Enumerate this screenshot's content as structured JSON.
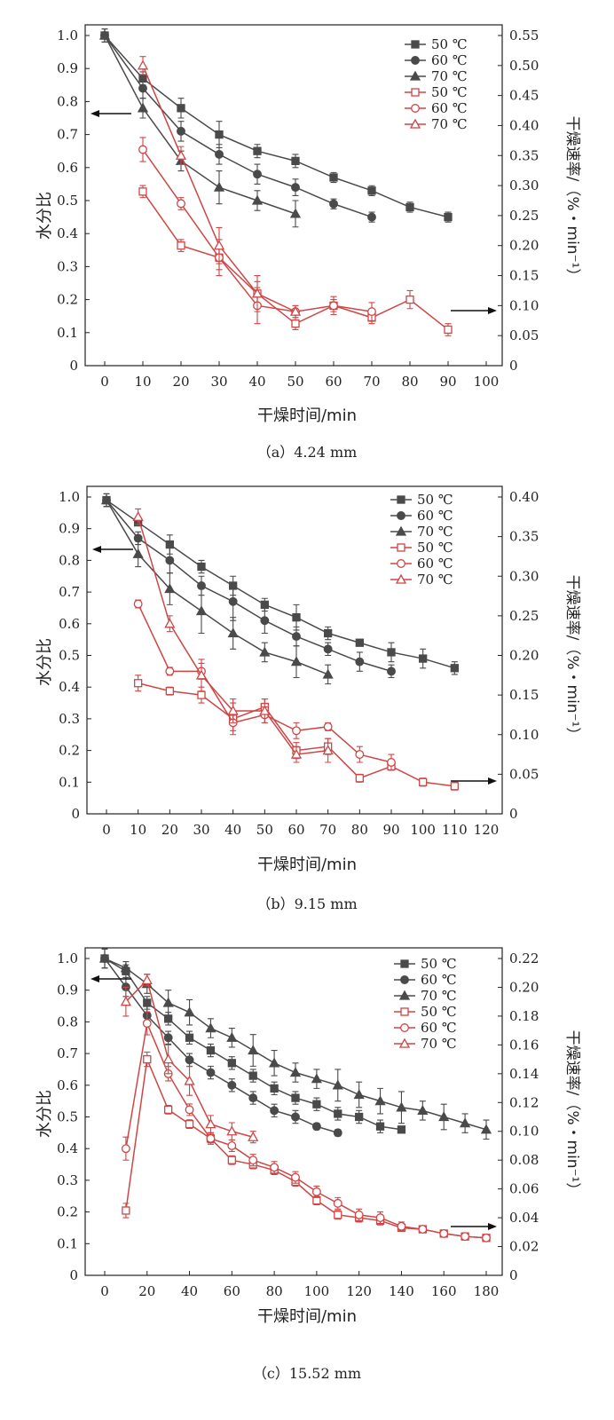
{
  "chart_data": [
    {
      "type": "line",
      "caption": "（a）4.24 mm",
      "xlabel": "干燥时间/min",
      "ylabel": "水分比",
      "y2label": "干燥速率/（%・min⁻¹）",
      "xlim": [
        0,
        100
      ],
      "ylim": [
        0,
        1.0
      ],
      "y2lim": [
        0,
        0.55
      ],
      "xticks": [
        "0",
        "10",
        "20",
        "30",
        "40",
        "50",
        "60",
        "70",
        "80",
        "90",
        "100"
      ],
      "yticks": [
        "0",
        "0.1",
        "0.2",
        "0.3",
        "0.4",
        "0.5",
        "0.6",
        "0.7",
        "0.8",
        "0.9",
        "1.0"
      ],
      "y2ticks": [
        "0",
        "0.05",
        "0.10",
        "0.15",
        "0.20",
        "0.25",
        "0.30",
        "0.35",
        "0.40",
        "0.45",
        "0.50",
        "0.55"
      ],
      "legend": [
        "50 ℃",
        "60 ℃",
        "70 ℃",
        "50 ℃",
        "60 ℃",
        "70 ℃"
      ],
      "legend_position": "top-right",
      "arrows": [
        "left",
        "right"
      ],
      "series": [
        {
          "name": "50 ℃",
          "axis": "left",
          "color": "#4a4a4a",
          "marker": "square-filled",
          "x": [
            0,
            10,
            20,
            30,
            40,
            50,
            60,
            70,
            80,
            90
          ],
          "y": [
            1.0,
            0.87,
            0.78,
            0.7,
            0.65,
            0.62,
            0.57,
            0.53,
            0.48,
            0.45
          ],
          "err": [
            0.02,
            0.02,
            0.03,
            0.04,
            0.02,
            0.02,
            0.015,
            0.015,
            0.015,
            0.015
          ]
        },
        {
          "name": "60 ℃",
          "axis": "left",
          "color": "#4a4a4a",
          "marker": "circle-filled",
          "x": [
            0,
            10,
            20,
            30,
            40,
            50,
            60,
            70
          ],
          "y": [
            1.0,
            0.84,
            0.71,
            0.64,
            0.58,
            0.54,
            0.49,
            0.45
          ],
          "err": [
            0.02,
            0.03,
            0.03,
            0.03,
            0.03,
            0.025,
            0.015,
            0.015
          ]
        },
        {
          "name": "70 ℃",
          "axis": "left",
          "color": "#4a4a4a",
          "marker": "triangle-filled",
          "x": [
            0,
            10,
            20,
            30,
            40,
            50
          ],
          "y": [
            1.0,
            0.78,
            0.62,
            0.54,
            0.5,
            0.46
          ],
          "err": [
            0.02,
            0.03,
            0.03,
            0.05,
            0.03,
            0.04
          ]
        },
        {
          "name": "50 ℃",
          "axis": "right",
          "color": "#d04545",
          "marker": "square-open",
          "x": [
            10,
            20,
            30,
            40,
            50,
            60,
            70,
            80,
            90
          ],
          "y": [
            0.29,
            0.2,
            0.18,
            0.12,
            0.07,
            0.1,
            0.08,
            0.11,
            0.06
          ],
          "err": [
            0.01,
            0.01,
            0.02,
            0.02,
            0.01,
            0.01,
            0.01,
            0.015,
            0.01
          ]
        },
        {
          "name": "60 ℃",
          "axis": "right",
          "color": "#d04545",
          "marker": "circle-open",
          "x": [
            10,
            20,
            30,
            40,
            50,
            60,
            70
          ],
          "y": [
            0.36,
            0.27,
            0.18,
            0.1,
            0.09,
            0.1,
            0.09
          ],
          "err": [
            0.02,
            0.01,
            0.03,
            0.03,
            0.01,
            0.015,
            0.015
          ]
        },
        {
          "name": "70 ℃",
          "axis": "right",
          "color": "#d04545",
          "marker": "triangle-open",
          "x": [
            10,
            20,
            30,
            40,
            50
          ],
          "y": [
            0.5,
            0.35,
            0.2,
            0.12,
            0.09
          ],
          "err": [
            0.015,
            0.015,
            0.03,
            0.03,
            0.01
          ]
        }
      ]
    },
    {
      "type": "line",
      "caption": "（b）9.15 mm",
      "xlabel": "干燥时间/min",
      "ylabel": "水分比",
      "y2label": "干燥速率/（%・min⁻¹）",
      "xlim": [
        0,
        120
      ],
      "ylim": [
        0,
        1.0
      ],
      "y2lim": [
        0,
        0.4
      ],
      "xticks": [
        "0",
        "10",
        "20",
        "30",
        "40",
        "50",
        "60",
        "70",
        "80",
        "90",
        "100",
        "110",
        "120"
      ],
      "yticks": [
        "0",
        "0.1",
        "0.2",
        "0.3",
        "0.4",
        "0.5",
        "0.6",
        "0.7",
        "0.8",
        "0.9",
        "1.0"
      ],
      "y2ticks": [
        "0",
        "0.05",
        "0.10",
        "0.15",
        "0.20",
        "0.25",
        "0.30",
        "0.35",
        "0.40"
      ],
      "legend": [
        "50 ℃",
        "60 ℃",
        "70 ℃",
        "50 ℃",
        "60 ℃",
        "70 ℃"
      ],
      "legend_position": "top-right",
      "arrows": [
        "left",
        "right"
      ],
      "series": [
        {
          "name": "50 ℃",
          "axis": "left",
          "color": "#4a4a4a",
          "marker": "square-filled",
          "x": [
            0,
            10,
            20,
            30,
            40,
            50,
            60,
            70,
            80,
            90,
            100,
            110
          ],
          "y": [
            0.99,
            0.92,
            0.85,
            0.78,
            0.72,
            0.66,
            0.62,
            0.57,
            0.54,
            0.51,
            0.49,
            0.46
          ],
          "err": [
            0.02,
            0.01,
            0.03,
            0.02,
            0.03,
            0.02,
            0.04,
            0.02,
            0.01,
            0.03,
            0.03,
            0.02
          ]
        },
        {
          "name": "60 ℃",
          "axis": "left",
          "color": "#4a4a4a",
          "marker": "circle-filled",
          "x": [
            0,
            10,
            20,
            30,
            40,
            50,
            60,
            70,
            80,
            90
          ],
          "y": [
            0.99,
            0.87,
            0.8,
            0.72,
            0.67,
            0.61,
            0.56,
            0.52,
            0.48,
            0.45
          ],
          "err": [
            0.02,
            0.02,
            0.04,
            0.03,
            0.06,
            0.04,
            0.03,
            0.02,
            0.03,
            0.02
          ]
        },
        {
          "name": "70 ℃",
          "axis": "left",
          "color": "#4a4a4a",
          "marker": "triangle-filled",
          "x": [
            0,
            10,
            20,
            30,
            40,
            50,
            60,
            70
          ],
          "y": [
            0.99,
            0.82,
            0.71,
            0.64,
            0.57,
            0.51,
            0.48,
            0.44
          ],
          "err": [
            0.02,
            0.04,
            0.05,
            0.07,
            0.05,
            0.03,
            0.05,
            0.03
          ]
        },
        {
          "name": "50 ℃",
          "axis": "right",
          "color": "#d04545",
          "marker": "square-open",
          "x": [
            10,
            20,
            30,
            40,
            50,
            60,
            70,
            80,
            90,
            100,
            110
          ],
          "y": [
            0.165,
            0.155,
            0.15,
            0.12,
            0.135,
            0.08,
            0.085,
            0.045,
            0.06,
            0.04,
            0.035
          ],
          "err": [
            0.01,
            0.005,
            0.01,
            0.02,
            0.01,
            0.01,
            0.01,
            0.005,
            0.005,
            0.005,
            0.005
          ]
        },
        {
          "name": "60 ℃",
          "axis": "right",
          "color": "#d04545",
          "marker": "circle-open",
          "x": [
            10,
            20,
            30,
            40,
            50,
            60,
            70,
            80,
            90
          ],
          "y": [
            0.265,
            0.18,
            0.18,
            0.115,
            0.125,
            0.105,
            0.11,
            0.075,
            0.065
          ],
          "err": [
            0.005,
            0.005,
            0.01,
            0.01,
            0.01,
            0.01,
            0.005,
            0.01,
            0.01
          ]
        },
        {
          "name": "70 ℃",
          "axis": "right",
          "color": "#d04545",
          "marker": "triangle-open",
          "x": [
            10,
            20,
            30,
            40,
            50,
            60,
            70
          ],
          "y": [
            0.375,
            0.24,
            0.175,
            0.13,
            0.13,
            0.075,
            0.08
          ],
          "err": [
            0.01,
            0.01,
            0.02,
            0.015,
            0.015,
            0.01,
            0.015
          ]
        }
      ]
    },
    {
      "type": "line",
      "caption": "（c）15.52 mm",
      "xlabel": "干燥时间/min",
      "ylabel": "水分比",
      "y2label": "干燥速率/（%・min⁻¹）",
      "xlim": [
        0,
        180
      ],
      "ylim": [
        0,
        1.0
      ],
      "y2lim": [
        0,
        0.22
      ],
      "xticks": [
        "0",
        "20",
        "40",
        "60",
        "80",
        "100",
        "120",
        "140",
        "160",
        "180"
      ],
      "yticks": [
        "0",
        "0.1",
        "0.2",
        "0.3",
        "0.4",
        "0.5",
        "0.6",
        "0.7",
        "0.8",
        "0.9",
        "1.0"
      ],
      "y2ticks": [
        "0",
        "0.02",
        "0.04",
        "0.06",
        "0.08",
        "0.10",
        "0.12",
        "0.14",
        "0.16",
        "0.18",
        "0.20",
        "0.22"
      ],
      "legend": [
        "50 ℃",
        "60 ℃",
        "70 ℃",
        "50 ℃",
        "60 ℃",
        "70 ℃"
      ],
      "legend_position": "top-right",
      "arrows": [
        "left",
        "right"
      ],
      "series": [
        {
          "name": "50 ℃",
          "axis": "left",
          "color": "#4a4a4a",
          "marker": "square-filled",
          "x": [
            0,
            10,
            20,
            30,
            40,
            50,
            60,
            70,
            80,
            90,
            100,
            110,
            120,
            130,
            140
          ],
          "y": [
            1.0,
            0.96,
            0.86,
            0.81,
            0.75,
            0.71,
            0.67,
            0.63,
            0.59,
            0.56,
            0.54,
            0.51,
            0.5,
            0.47,
            0.46
          ],
          "err": [
            0.03,
            0.02,
            0.02,
            0.02,
            0.02,
            0.02,
            0.02,
            0.02,
            0.02,
            0.02,
            0.02,
            0.02,
            0.02,
            0.02,
            0.01
          ]
        },
        {
          "name": "60 ℃",
          "axis": "left",
          "color": "#4a4a4a",
          "marker": "circle-filled",
          "x": [
            0,
            10,
            20,
            30,
            40,
            50,
            60,
            70,
            80,
            90,
            100,
            110
          ],
          "y": [
            1.0,
            0.91,
            0.82,
            0.75,
            0.68,
            0.64,
            0.6,
            0.56,
            0.52,
            0.5,
            0.47,
            0.45
          ],
          "err": [
            0.03,
            0.03,
            0.03,
            0.02,
            0.02,
            0.02,
            0.02,
            0.02,
            0.02,
            0.02,
            0.01,
            0.01
          ]
        },
        {
          "name": "70 ℃",
          "axis": "left",
          "color": "#4a4a4a",
          "marker": "triangle-filled",
          "x": [
            0,
            10,
            20,
            30,
            40,
            50,
            60,
            70,
            80,
            90,
            100,
            110,
            120,
            130,
            140,
            150,
            160,
            170,
            180
          ],
          "y": [
            1.0,
            0.97,
            0.92,
            0.86,
            0.83,
            0.78,
            0.75,
            0.71,
            0.67,
            0.64,
            0.62,
            0.6,
            0.57,
            0.55,
            0.53,
            0.52,
            0.5,
            0.48,
            0.46
          ],
          "err": [
            0.03,
            0.02,
            0.03,
            0.04,
            0.04,
            0.03,
            0.03,
            0.05,
            0.04,
            0.03,
            0.03,
            0.05,
            0.04,
            0.04,
            0.05,
            0.03,
            0.04,
            0.03,
            0.03
          ]
        },
        {
          "name": "50 ℃",
          "axis": "right",
          "color": "#d04545",
          "marker": "square-open",
          "x": [
            10,
            20,
            30,
            40,
            50,
            60,
            70,
            80,
            90,
            100,
            110,
            120,
            130,
            140,
            150,
            160,
            170,
            180
          ],
          "y": [
            0.045,
            0.15,
            0.115,
            0.105,
            0.095,
            0.08,
            0.077,
            0.073,
            0.065,
            0.052,
            0.042,
            0.04,
            0.038,
            0.033,
            0.032,
            0.029,
            0.027,
            0.026
          ],
          "err": [
            0.005,
            0.005,
            0.003,
            0.003,
            0.003,
            0.003,
            0.003,
            0.003,
            0.003,
            0.003,
            0.003,
            0.003,
            0.003,
            0.002,
            0.002,
            0.002,
            0.002,
            0.002
          ]
        },
        {
          "name": "60 ℃",
          "axis": "right",
          "color": "#d04545",
          "marker": "circle-open",
          "x": [
            10,
            20,
            30,
            40,
            50,
            60,
            70,
            80,
            90,
            100,
            110,
            120,
            130,
            140,
            150,
            160,
            170,
            180
          ],
          "y": [
            0.088,
            0.175,
            0.14,
            0.115,
            0.095,
            0.09,
            0.08,
            0.075,
            0.068,
            0.058,
            0.05,
            0.042,
            0.04,
            0.034,
            0.032,
            0.029,
            0.027,
            0.026
          ],
          "err": [
            0.008,
            0.008,
            0.005,
            0.004,
            0.004,
            0.004,
            0.004,
            0.004,
            0.004,
            0.004,
            0.004,
            0.004,
            0.004,
            0.003,
            0.002,
            0.002,
            0.002,
            0.002
          ]
        },
        {
          "name": "70 ℃",
          "axis": "right",
          "color": "#d04545",
          "marker": "triangle-open",
          "x": [
            10,
            20,
            30,
            40,
            50,
            60,
            70
          ],
          "y": [
            0.19,
            0.205,
            0.15,
            0.135,
            0.105,
            0.1,
            0.096
          ],
          "err": [
            0.01,
            0.004,
            0.01,
            0.01,
            0.006,
            0.006,
            0.004
          ]
        }
      ]
    }
  ]
}
